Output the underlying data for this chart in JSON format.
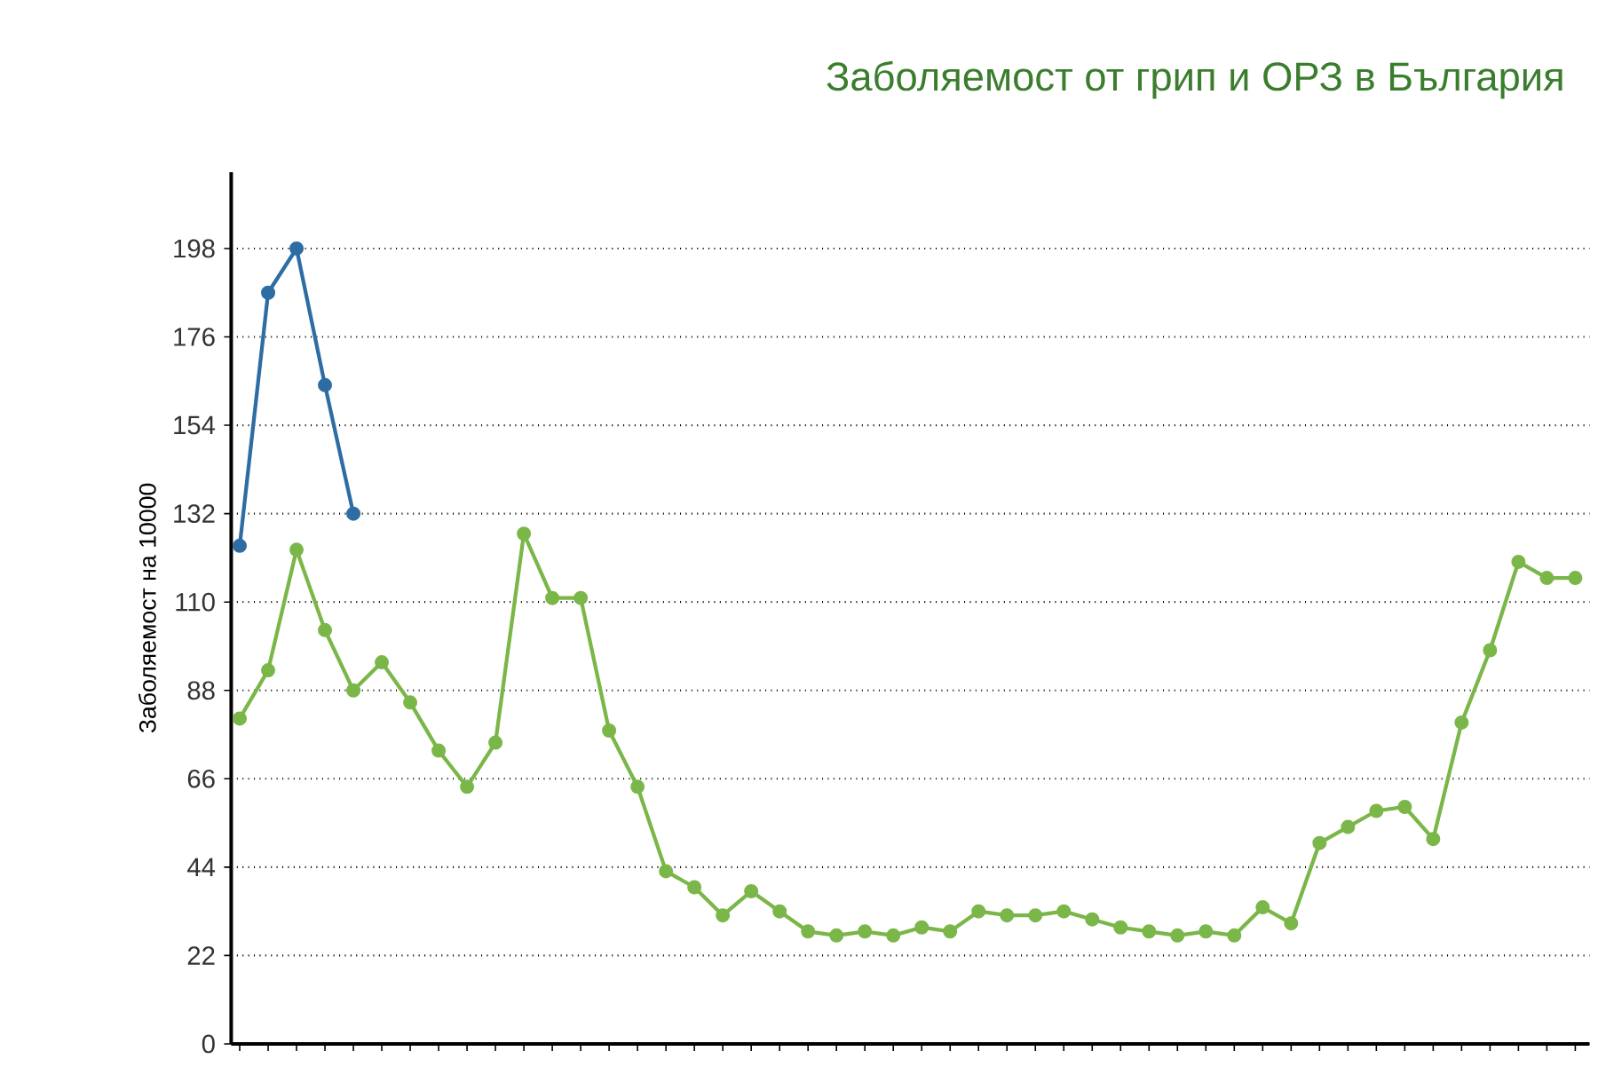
{
  "chart_data": {
    "type": "line",
    "title": "Заболяемост от грип и ОРЗ в България",
    "ylabel": "Заболяемост на 10000",
    "categories": [
      null,
      null,
      null,
      null,
      null,
      null,
      null,
      null,
      null,
      null,
      null,
      null,
      null,
      null,
      null,
      null,
      null,
      null,
      null,
      null,
      null,
      null,
      null,
      null,
      null,
      null,
      null,
      null,
      null,
      null,
      null,
      null,
      null,
      null,
      null,
      null,
      null,
      null,
      null,
      null,
      null,
      null,
      null,
      null,
      null,
      null,
      null,
      null
    ],
    "series": [
      {
        "color": "#2e6ca4",
        "values": [
          124,
          187,
          198,
          164,
          132,
          null,
          null,
          null,
          null,
          null,
          null,
          null,
          null,
          null,
          null,
          null,
          null,
          null,
          null,
          null,
          null,
          null,
          null,
          null,
          null,
          null,
          null,
          null,
          null,
          null,
          null,
          null,
          null,
          null,
          null,
          null,
          null,
          null,
          null,
          null,
          null,
          null,
          null,
          null,
          null,
          null,
          null,
          null
        ]
      },
      {
        "color": "#7ab648",
        "values": [
          81,
          93,
          123,
          103,
          88,
          95,
          85,
          73,
          64,
          75,
          127,
          111,
          111,
          78,
          64,
          43,
          39,
          32,
          38,
          33,
          28,
          27,
          28,
          27,
          29,
          28,
          33,
          32,
          32,
          33,
          31,
          29,
          28,
          27,
          28,
          27,
          34,
          30,
          50,
          54,
          58,
          59,
          51,
          80,
          98,
          120,
          116,
          116
        ]
      }
    ],
    "ylim": [
      0,
      217
    ],
    "yticks": [
      0,
      22,
      44,
      66,
      88,
      110,
      132,
      154,
      176,
      198
    ],
    "grid": "y",
    "marker": "circle",
    "line_style": "solid",
    "tick_labels": "y"
  }
}
